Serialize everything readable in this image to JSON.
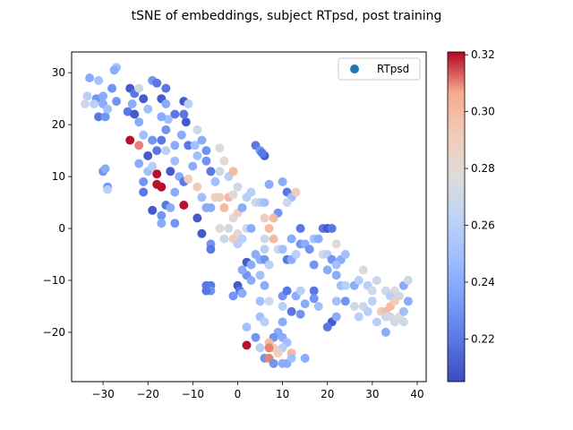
{
  "chart_data": {
    "type": "scatter",
    "title": "tSNE of embeddings, subject RTpsd, post training",
    "xlabel": "",
    "ylabel": "",
    "xlim": [
      -37,
      42
    ],
    "ylim": [
      -29.5,
      34
    ],
    "xticks": [
      -30,
      -20,
      -10,
      0,
      10,
      20,
      30,
      40
    ],
    "yticks": [
      -20,
      -10,
      0,
      10,
      20,
      30
    ],
    "grid": false,
    "legend": {
      "placement": "top-right",
      "entries": [
        "RTpsd"
      ],
      "marker_color": "#1f77b4"
    },
    "colorbar": {
      "colormap": "coolwarm",
      "min": 0.205,
      "max": 0.321,
      "ticks": [
        0.22,
        0.24,
        0.26,
        0.28,
        0.3,
        0.32
      ],
      "tick_labels": [
        "0.22",
        "0.24",
        "0.26",
        "0.28",
        "0.30",
        "0.32"
      ]
    },
    "series": [
      {
        "name": "RTpsd",
        "points": [
          [
            -33,
            29,
            0.24
          ],
          [
            -31,
            28.5,
            0.25
          ],
          [
            -33.5,
            25.5,
            0.26
          ],
          [
            -31.5,
            25,
            0.23
          ],
          [
            -30,
            25.5,
            0.24
          ],
          [
            -28,
            27,
            0.23
          ],
          [
            -27,
            31,
            0.25
          ],
          [
            -27.5,
            30.5,
            0.24
          ],
          [
            -31,
            21.5,
            0.22
          ],
          [
            -29.5,
            21.5,
            0.23
          ],
          [
            -30,
            24,
            0.24
          ],
          [
            -32,
            24,
            0.26
          ],
          [
            -34,
            24,
            0.27
          ],
          [
            -29,
            23,
            0.25
          ],
          [
            -27,
            24.5,
            0.23
          ],
          [
            -24,
            27,
            0.21
          ],
          [
            -23,
            26,
            0.22
          ],
          [
            -22,
            27,
            0.27
          ],
          [
            -23.5,
            24,
            0.24
          ],
          [
            -21,
            25,
            0.21
          ],
          [
            -24.5,
            22.5,
            0.22
          ],
          [
            -23,
            22,
            0.21
          ],
          [
            -20,
            23,
            0.25
          ],
          [
            -22,
            20.5,
            0.24
          ],
          [
            -19,
            28.5,
            0.23
          ],
          [
            -18,
            28,
            0.22
          ],
          [
            -17,
            25,
            0.21
          ],
          [
            -16,
            27,
            0.22
          ],
          [
            -16,
            24,
            0.24
          ],
          [
            -14,
            22,
            0.22
          ],
          [
            -15.5,
            21,
            0.25
          ],
          [
            -17,
            21.5,
            0.24
          ],
          [
            -16,
            19,
            0.23
          ],
          [
            -12,
            24.5,
            0.21
          ],
          [
            -12,
            22,
            0.22
          ],
          [
            -11,
            24,
            0.26
          ],
          [
            -11.5,
            20.5,
            0.21
          ],
          [
            -12.5,
            18,
            0.24
          ],
          [
            -11,
            16,
            0.22
          ],
          [
            -9.5,
            16,
            0.25
          ],
          [
            -9,
            19,
            0.27
          ],
          [
            -8,
            17,
            0.24
          ],
          [
            -7,
            15,
            0.23
          ],
          [
            -24,
            17,
            0.32
          ],
          [
            -22,
            16,
            0.31
          ],
          [
            -21,
            18,
            0.25
          ],
          [
            -19,
            17,
            0.23
          ],
          [
            -17,
            17,
            0.22
          ],
          [
            -20,
            14,
            0.21
          ],
          [
            -18,
            15,
            0.22
          ],
          [
            -16,
            15,
            0.26
          ],
          [
            -14,
            16,
            0.24
          ],
          [
            -14,
            13,
            0.25
          ],
          [
            -20,
            11,
            0.25
          ],
          [
            -18,
            10.5,
            0.32
          ],
          [
            -18,
            8.5,
            0.32
          ],
          [
            -17,
            8,
            0.32
          ],
          [
            -21,
            9,
            0.23
          ],
          [
            -22,
            12.5,
            0.24
          ],
          [
            -19,
            12,
            0.26
          ],
          [
            -15,
            11,
            0.21
          ],
          [
            -13,
            10,
            0.24
          ],
          [
            -12,
            9,
            0.22
          ],
          [
            -10,
            12,
            0.24
          ],
          [
            -9,
            14,
            0.25
          ],
          [
            -7,
            13,
            0.23
          ],
          [
            -6,
            11,
            0.22
          ],
          [
            -5,
            9,
            0.25
          ],
          [
            -4,
            11,
            0.27
          ],
          [
            -3,
            13,
            0.28
          ],
          [
            -4,
            15.5,
            0.28
          ],
          [
            -2,
            10,
            0.26
          ],
          [
            -1,
            11,
            0.3
          ],
          [
            -21,
            7,
            0.22
          ],
          [
            -19,
            3.5,
            0.21
          ],
          [
            -17,
            2.5,
            0.23
          ],
          [
            -16,
            4.5,
            0.22
          ],
          [
            -15,
            4,
            0.24
          ],
          [
            -14,
            7,
            0.24
          ],
          [
            -12,
            4.5,
            0.32
          ],
          [
            -11,
            9.5,
            0.29
          ],
          [
            -9,
            8,
            0.29
          ],
          [
            -8,
            6,
            0.25
          ],
          [
            -17,
            1,
            0.24
          ],
          [
            -14,
            1,
            0.23
          ],
          [
            -7,
            4,
            0.24
          ],
          [
            -6,
            4,
            0.24
          ],
          [
            -5,
            6,
            0.29
          ],
          [
            -4,
            6,
            0.29
          ],
          [
            -3,
            4,
            0.3
          ],
          [
            -2,
            6,
            0.3
          ],
          [
            -1,
            6.5,
            0.28
          ],
          [
            0,
            8,
            0.27
          ],
          [
            -30,
            11,
            0.23
          ],
          [
            -29.5,
            11.5,
            0.24
          ],
          [
            -29,
            8,
            0.23
          ],
          [
            -29,
            7.5,
            0.26
          ],
          [
            -9,
            2,
            0.21
          ],
          [
            -8,
            -1,
            0.21
          ],
          [
            -6,
            -3,
            0.23
          ],
          [
            -6,
            -4,
            0.22
          ],
          [
            -4,
            0,
            0.28
          ],
          [
            -3,
            -2,
            0.27
          ],
          [
            -2,
            0,
            0.27
          ],
          [
            -1,
            2,
            0.28
          ],
          [
            0,
            3,
            0.29
          ],
          [
            1,
            4,
            0.24
          ],
          [
            0,
            -1,
            0.28
          ],
          [
            -1,
            -2,
            0.29
          ],
          [
            0,
            -3,
            0.26
          ],
          [
            1,
            -2,
            0.26
          ],
          [
            2,
            0,
            0.27
          ],
          [
            3,
            0,
            0.24
          ],
          [
            -7,
            -11,
            0.22
          ],
          [
            -6,
            -11,
            0.22
          ],
          [
            -6,
            -12,
            0.23
          ],
          [
            -7,
            -12,
            0.22
          ],
          [
            0,
            -11,
            0.21
          ],
          [
            0.5,
            -12,
            0.22
          ],
          [
            1,
            -12.5,
            0.24
          ],
          [
            -1,
            -13,
            0.23
          ],
          [
            2,
            -9,
            0.23
          ],
          [
            3,
            -10,
            0.24
          ],
          [
            1,
            -8,
            0.24
          ],
          [
            2,
            -6.5,
            0.21
          ],
          [
            3,
            -7,
            0.24
          ],
          [
            4,
            -5,
            0.24
          ],
          [
            5,
            -6,
            0.24
          ],
          [
            6,
            -4,
            0.26
          ],
          [
            6,
            -6,
            0.23
          ],
          [
            7,
            -7,
            0.26
          ],
          [
            5,
            -9,
            0.25
          ],
          [
            6,
            -11,
            0.24
          ],
          [
            4,
            16,
            0.22
          ],
          [
            5,
            15,
            0.23
          ],
          [
            6,
            14,
            0.21
          ],
          [
            5.5,
            14.5,
            0.22
          ],
          [
            7,
            8.5,
            0.24
          ],
          [
            3,
            7,
            0.26
          ],
          [
            2,
            6,
            0.26
          ],
          [
            4,
            5,
            0.27
          ],
          [
            5,
            5,
            0.26
          ],
          [
            6,
            5,
            0.25
          ],
          [
            10,
            9,
            0.24
          ],
          [
            11,
            7,
            0.22
          ],
          [
            12,
            6,
            0.25
          ],
          [
            13,
            7,
            0.29
          ],
          [
            11,
            5,
            0.27
          ],
          [
            9,
            3,
            0.23
          ],
          [
            8,
            2,
            0.3
          ],
          [
            6,
            2,
            0.29
          ],
          [
            7,
            0,
            0.3
          ],
          [
            6,
            -2,
            0.27
          ],
          [
            8,
            -2,
            0.3
          ],
          [
            9,
            -4,
            0.27
          ],
          [
            10,
            -4,
            0.25
          ],
          [
            11,
            -6,
            0.22
          ],
          [
            12,
            -6,
            0.24
          ],
          [
            13,
            -5,
            0.26
          ],
          [
            14,
            -3,
            0.23
          ],
          [
            15,
            -3,
            0.24
          ],
          [
            12,
            -2,
            0.24
          ],
          [
            14,
            0,
            0.22
          ],
          [
            16,
            -4,
            0.23
          ],
          [
            17,
            -7,
            0.23
          ],
          [
            17,
            -2,
            0.25
          ],
          [
            18,
            -2,
            0.24
          ],
          [
            19,
            -5,
            0.27
          ],
          [
            20,
            -5,
            0.26
          ],
          [
            21,
            -6,
            0.23
          ],
          [
            19,
            0,
            0.22
          ],
          [
            20,
            0,
            0.21
          ],
          [
            21,
            0,
            0.22
          ],
          [
            22,
            -3,
            0.28
          ],
          [
            23,
            -6,
            0.24
          ],
          [
            24,
            -5,
            0.25
          ],
          [
            22,
            -7,
            0.25
          ],
          [
            20,
            -8,
            0.24
          ],
          [
            22,
            -9,
            0.24
          ],
          [
            23,
            -11,
            0.25
          ],
          [
            24,
            -11,
            0.26
          ],
          [
            26,
            -11,
            0.24
          ],
          [
            27,
            -10,
            0.26
          ],
          [
            28,
            -8,
            0.28
          ],
          [
            29,
            -11,
            0.26
          ],
          [
            31,
            -10,
            0.27
          ],
          [
            30,
            -12,
            0.27
          ],
          [
            33,
            -12,
            0.27
          ],
          [
            35,
            -12,
            0.28
          ],
          [
            37,
            -11,
            0.24
          ],
          [
            38,
            -10,
            0.27
          ],
          [
            36,
            -13,
            0.27
          ],
          [
            34,
            -13,
            0.26
          ],
          [
            28,
            -15,
            0.27
          ],
          [
            30,
            -14,
            0.26
          ],
          [
            32,
            -16,
            0.29
          ],
          [
            33,
            -16,
            0.3
          ],
          [
            34,
            -15,
            0.3
          ],
          [
            35,
            -14,
            0.29
          ],
          [
            33,
            -17,
            0.27
          ],
          [
            34,
            -17,
            0.27
          ],
          [
            35,
            -18,
            0.27
          ],
          [
            33,
            -20,
            0.24
          ],
          [
            36,
            -17,
            0.28
          ],
          [
            37,
            -16,
            0.25
          ],
          [
            37,
            -18,
            0.27
          ],
          [
            38,
            -14,
            0.24
          ],
          [
            31,
            -18,
            0.26
          ],
          [
            26,
            -15,
            0.27
          ],
          [
            27,
            -17,
            0.26
          ],
          [
            29,
            -16,
            0.26
          ],
          [
            24,
            -14,
            0.23
          ],
          [
            22,
            -14,
            0.25
          ],
          [
            10,
            -13,
            0.23
          ],
          [
            11,
            -12,
            0.22
          ],
          [
            13,
            -13,
            0.24
          ],
          [
            14,
            -12,
            0.26
          ],
          [
            17,
            -12,
            0.22
          ],
          [
            17,
            -13.5,
            0.23
          ],
          [
            18,
            -15,
            0.25
          ],
          [
            21,
            -18,
            0.21
          ],
          [
            22,
            -17,
            0.24
          ],
          [
            20,
            -19,
            0.22
          ],
          [
            15,
            -14.5,
            0.24
          ],
          [
            14,
            -16.5,
            0.23
          ],
          [
            12,
            -16,
            0.22
          ],
          [
            10,
            -18,
            0.24
          ],
          [
            9,
            -20,
            0.24
          ],
          [
            8,
            -21,
            0.23
          ],
          [
            10,
            -21,
            0.24
          ],
          [
            11,
            -22,
            0.25
          ],
          [
            10,
            -23,
            0.26
          ],
          [
            12,
            -24,
            0.3
          ],
          [
            7,
            -22,
            0.3
          ],
          [
            8,
            -23,
            0.29
          ],
          [
            7,
            -23,
            0.31
          ],
          [
            9,
            -24,
            0.29
          ],
          [
            6,
            -25,
            0.23
          ],
          [
            5,
            -23,
            0.26
          ],
          [
            4,
            -21,
            0.23
          ],
          [
            5,
            -17,
            0.25
          ],
          [
            6,
            -18,
            0.26
          ],
          [
            2,
            -19,
            0.25
          ],
          [
            2,
            -22.5,
            0.32
          ],
          [
            7,
            -25,
            0.31
          ],
          [
            8,
            -26,
            0.23
          ],
          [
            10,
            -26,
            0.24
          ],
          [
            11,
            -26,
            0.24
          ],
          [
            15,
            -25,
            0.24
          ],
          [
            12,
            -25,
            0.25
          ],
          [
            5,
            -14,
            0.25
          ],
          [
            7,
            -14,
            0.27
          ],
          [
            10,
            -15,
            0.26
          ]
        ]
      }
    ]
  }
}
